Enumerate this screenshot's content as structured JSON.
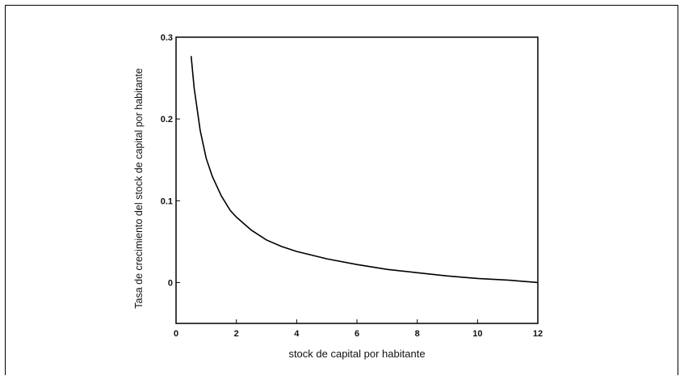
{
  "chart_data": {
    "type": "line",
    "xlabel": "stock de capital por habitante",
    "ylabel": "Tasa de crecimiento del stock de capital por habitante",
    "xlim": [
      0,
      12
    ],
    "ylim": [
      -0.05,
      0.3
    ],
    "x_ticks": [
      "0",
      "2",
      "4",
      "6",
      "8",
      "10",
      "12"
    ],
    "y_ticks": [
      "0",
      "0.1",
      "0.2",
      "0.3"
    ],
    "grid": false,
    "series": [
      {
        "color": "#000000",
        "x": [
          0.5,
          0.6,
          0.8,
          1.0,
          1.2,
          1.5,
          1.8,
          2.0,
          2.5,
          3.0,
          3.5,
          4.0,
          5.0,
          6.0,
          7.0,
          8.0,
          9.0,
          10.0,
          11.0,
          12.0
        ],
        "y": [
          0.277,
          0.238,
          0.186,
          0.152,
          0.13,
          0.106,
          0.088,
          0.08,
          0.064,
          0.052,
          0.044,
          0.038,
          0.029,
          0.022,
          0.016,
          0.012,
          0.008,
          0.005,
          0.003,
          0.0
        ]
      }
    ]
  }
}
